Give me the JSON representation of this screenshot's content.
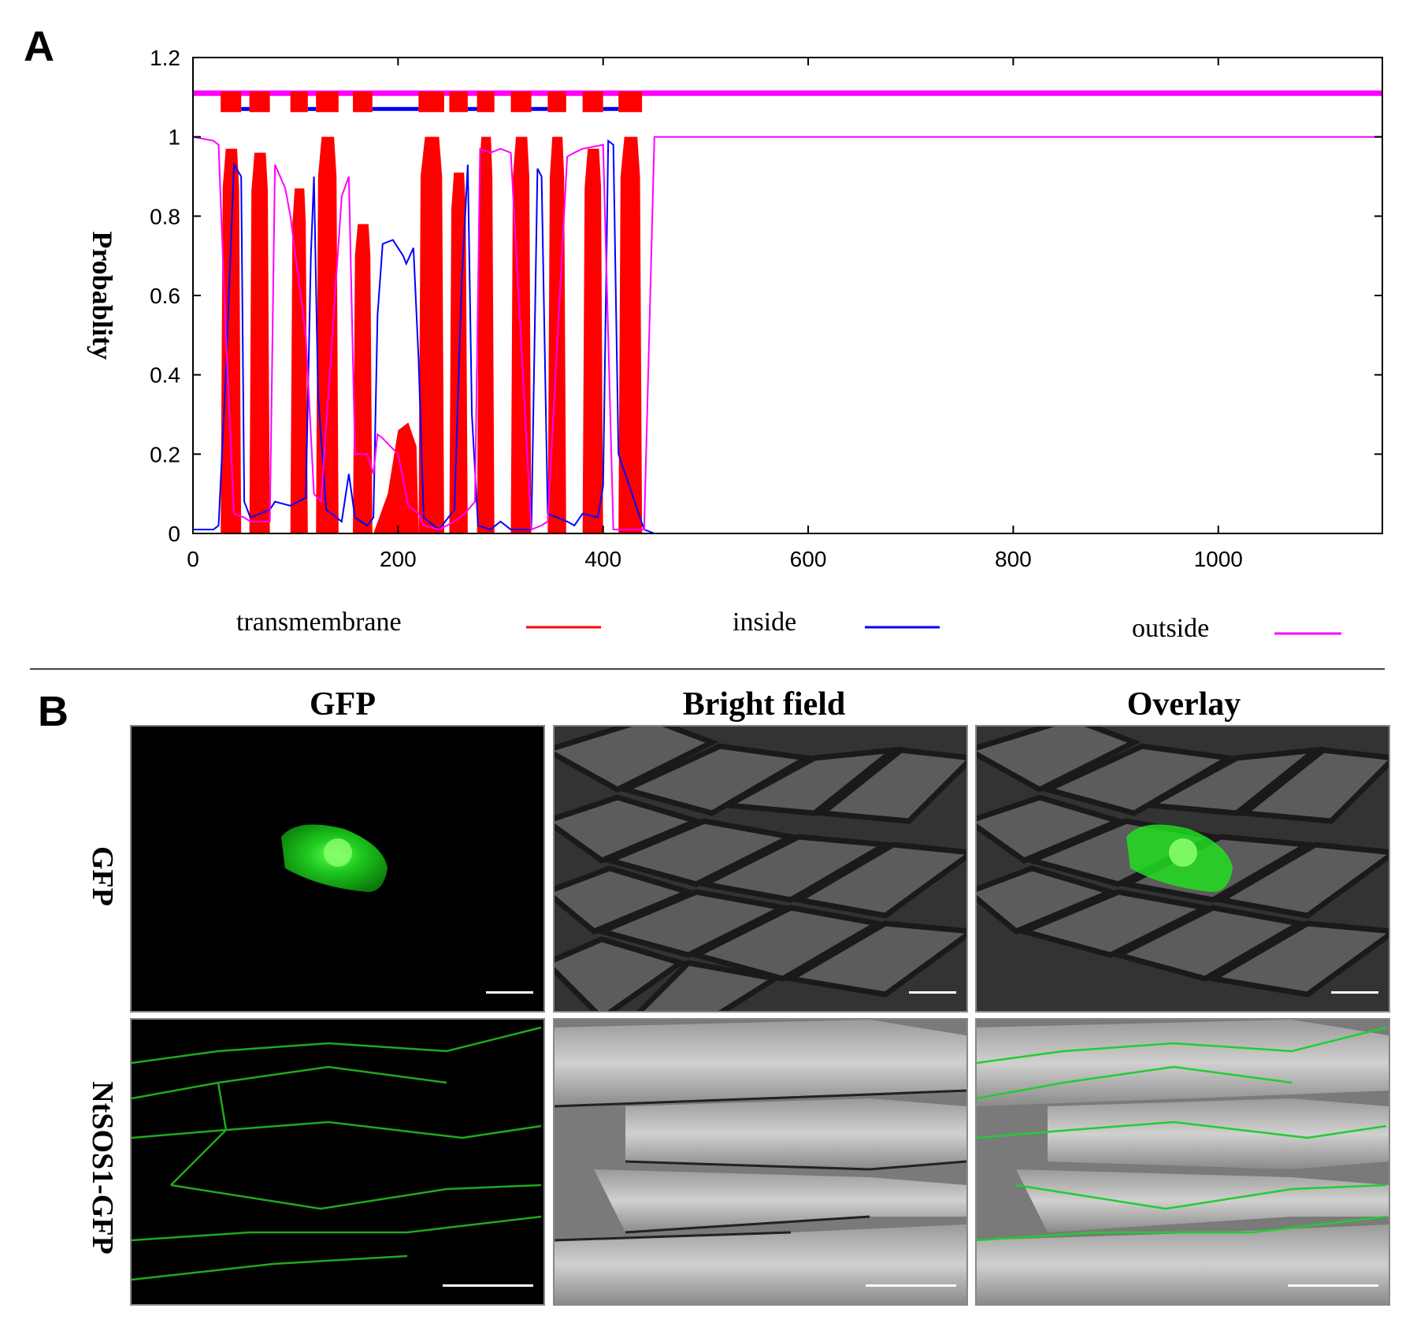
{
  "panels": {
    "a_label": "A",
    "b_label": "B"
  },
  "chart_data": {
    "type": "line",
    "title": "",
    "xlabel": "",
    "ylabel": "Probablity",
    "xlim": [
      0,
      1160
    ],
    "ylim": [
      0,
      1.2
    ],
    "x_ticks": [
      "0",
      "200",
      "400",
      "600",
      "800",
      "1000"
    ],
    "y_ticks": [
      "0",
      "0.2",
      "0.4",
      "0.6",
      "0.8",
      "1",
      "1.2"
    ],
    "grid": false,
    "legend_position": "bottom",
    "legend": [
      {
        "label": "transmembrane",
        "color": "#ff0000"
      },
      {
        "label": "inside",
        "color": "#0000ff"
      },
      {
        "label": "outside",
        "color": "#ff00ff"
      }
    ],
    "transmembrane_segments": [
      {
        "start": 27,
        "end": 47,
        "peak": 0.97
      },
      {
        "start": 55,
        "end": 75,
        "peak": 0.96
      },
      {
        "start": 95,
        "end": 112,
        "peak": 0.87
      },
      {
        "start": 120,
        "end": 142,
        "peak": 1.0
      },
      {
        "start": 156,
        "end": 175,
        "peak": 0.78
      },
      {
        "start": 220,
        "end": 245,
        "peak": 1.0
      },
      {
        "start": 250,
        "end": 268,
        "peak": 0.91
      },
      {
        "start": 277,
        "end": 294,
        "peak": 1.0
      },
      {
        "start": 310,
        "end": 330,
        "peak": 1.0
      },
      {
        "start": 346,
        "end": 364,
        "peak": 1.0
      },
      {
        "start": 380,
        "end": 400,
        "peak": 0.97
      },
      {
        "start": 415,
        "end": 438,
        "peak": 1.0
      }
    ],
    "series": [
      {
        "name": "inside",
        "color": "#0000ff",
        "x": [
          0,
          20,
          25,
          32,
          40,
          47,
          50,
          56,
          75,
          80,
          95,
          110,
          115,
          118,
          122,
          130,
          145,
          152,
          158,
          170,
          176,
          180,
          185,
          195,
          205,
          208,
          215,
          220,
          225,
          240,
          255,
          262,
          268,
          272,
          278,
          290,
          300,
          310,
          330,
          336,
          340,
          346,
          365,
          372,
          380,
          395,
          400,
          405,
          410,
          415,
          440,
          450,
          1160
        ],
        "y": [
          0.01,
          0.01,
          0.02,
          0.4,
          0.93,
          0.9,
          0.08,
          0.04,
          0.06,
          0.08,
          0.07,
          0.09,
          0.7,
          0.9,
          0.35,
          0.06,
          0.03,
          0.15,
          0.04,
          0.02,
          0.04,
          0.55,
          0.73,
          0.74,
          0.7,
          0.68,
          0.72,
          0.44,
          0.04,
          0.01,
          0.06,
          0.63,
          0.93,
          0.3,
          0.02,
          0.01,
          0.03,
          0.01,
          0.01,
          0.92,
          0.9,
          0.05,
          0.03,
          0.02,
          0.05,
          0.04,
          0.12,
          0.99,
          0.98,
          0.2,
          0.01,
          0.0,
          0.0
        ]
      },
      {
        "name": "outside",
        "color": "#ff00ff",
        "x": [
          0,
          20,
          25,
          32,
          40,
          50,
          56,
          75,
          80,
          90,
          95,
          110,
          118,
          125,
          145,
          152,
          158,
          170,
          176,
          180,
          185,
          200,
          210,
          220,
          225,
          240,
          255,
          265,
          275,
          280,
          290,
          300,
          310,
          330,
          340,
          346,
          365,
          372,
          380,
          400,
          410,
          420,
          440,
          450,
          1160
        ],
        "y": [
          1.0,
          0.99,
          0.98,
          0.5,
          0.05,
          0.04,
          0.03,
          0.03,
          0.93,
          0.87,
          0.8,
          0.5,
          0.1,
          0.08,
          0.85,
          0.9,
          0.2,
          0.2,
          0.15,
          0.25,
          0.24,
          0.2,
          0.07,
          0.05,
          0.02,
          0.01,
          0.03,
          0.05,
          0.08,
          0.97,
          0.96,
          0.97,
          0.96,
          0.01,
          0.02,
          0.03,
          0.95,
          0.96,
          0.97,
          0.98,
          0.01,
          0.01,
          0.01,
          1.0,
          1.0
        ]
      }
    ],
    "topology_band": {
      "y": 1.11,
      "tm_boxes": [
        [
          27,
          47
        ],
        [
          55,
          75
        ],
        [
          95,
          112
        ],
        [
          120,
          142
        ],
        [
          156,
          175
        ],
        [
          220,
          245
        ],
        [
          250,
          268
        ],
        [
          277,
          294
        ],
        [
          310,
          330
        ],
        [
          346,
          364
        ],
        [
          380,
          400
        ],
        [
          415,
          438
        ]
      ],
      "inside_segments": [
        [
          47,
          55
        ],
        [
          112,
          120
        ],
        [
          175,
          220
        ],
        [
          268,
          277
        ],
        [
          330,
          346
        ],
        [
          400,
          415
        ]
      ],
      "outside_color": "#ff00ff"
    }
  },
  "figure_b": {
    "columns": [
      "GFP",
      "Bright field",
      "Overlay"
    ],
    "rows": [
      "GFP",
      "NtSOS1-GFP"
    ]
  }
}
